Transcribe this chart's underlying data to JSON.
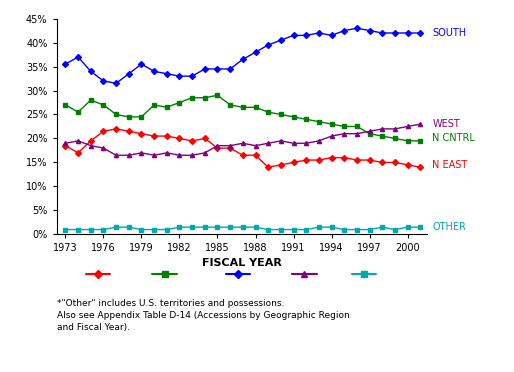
{
  "years": [
    1973,
    1974,
    1975,
    1976,
    1977,
    1978,
    1979,
    1980,
    1981,
    1982,
    1983,
    1984,
    1985,
    1986,
    1987,
    1988,
    1989,
    1990,
    1991,
    1992,
    1993,
    1994,
    1995,
    1996,
    1997,
    1998,
    1999,
    2000,
    2001
  ],
  "n_east": [
    18.5,
    17.0,
    19.5,
    21.5,
    22.0,
    21.5,
    21.0,
    20.5,
    20.5,
    20.0,
    19.5,
    20.0,
    18.0,
    18.0,
    16.5,
    16.5,
    14.0,
    14.5,
    15.0,
    15.5,
    15.5,
    16.0,
    16.0,
    15.5,
    15.5,
    15.0,
    15.0,
    14.5,
    14.0
  ],
  "n_cntrl": [
    27.0,
    25.5,
    28.0,
    27.0,
    25.0,
    24.5,
    24.5,
    27.0,
    26.5,
    27.5,
    28.5,
    28.5,
    29.0,
    27.0,
    26.5,
    26.5,
    25.5,
    25.0,
    24.5,
    24.0,
    23.5,
    23.0,
    22.5,
    22.5,
    21.0,
    20.5,
    20.0,
    19.5,
    19.5
  ],
  "south": [
    35.5,
    37.0,
    34.0,
    32.0,
    31.5,
    33.5,
    35.5,
    34.0,
    33.5,
    33.0,
    33.0,
    34.5,
    34.5,
    34.5,
    36.5,
    38.0,
    39.5,
    40.5,
    41.5,
    41.5,
    42.0,
    41.5,
    42.5,
    43.0,
    42.5,
    42.0,
    42.0,
    42.0,
    42.0
  ],
  "west": [
    19.0,
    19.5,
    18.5,
    18.0,
    16.5,
    16.5,
    17.0,
    16.5,
    17.0,
    16.5,
    16.5,
    17.0,
    18.5,
    18.5,
    19.0,
    18.5,
    19.0,
    19.5,
    19.0,
    19.0,
    19.5,
    20.5,
    21.0,
    21.0,
    21.5,
    22.0,
    22.0,
    22.5,
    23.0
  ],
  "other": [
    1.0,
    1.0,
    1.0,
    1.0,
    1.5,
    1.5,
    1.0,
    1.0,
    1.0,
    1.5,
    1.5,
    1.5,
    1.5,
    1.5,
    1.5,
    1.5,
    1.0,
    1.0,
    1.0,
    1.0,
    1.5,
    1.5,
    1.0,
    1.0,
    1.0,
    1.5,
    1.0,
    1.5,
    1.5
  ],
  "colors": {
    "n_east": "#FF0000",
    "n_cntrl": "#008000",
    "south": "#0000FF",
    "west": "#800080",
    "other": "#00AAAA"
  },
  "xlabel": "FISCAL YEAR",
  "ylim": [
    0,
    45
  ],
  "yticks": [
    0,
    5,
    10,
    15,
    20,
    25,
    30,
    35,
    40,
    45
  ],
  "xticks": [
    1973,
    1976,
    1979,
    1982,
    1985,
    1988,
    1991,
    1994,
    1997,
    2000
  ],
  "right_labels": [
    [
      "south",
      42.0,
      "#0000FF",
      "SOUTH"
    ],
    [
      "west",
      23.0,
      "#800080",
      "WEST"
    ],
    [
      "n_cntrl",
      20.0,
      "#008000",
      "N CNTRL"
    ],
    [
      "n_east",
      14.5,
      "#FF0000",
      "N EAST"
    ],
    [
      "other",
      1.5,
      "#00AAAA",
      "OTHER"
    ]
  ],
  "legend_items": [
    [
      "N East",
      "#FF0000",
      "D"
    ],
    [
      "N Cntrl",
      "#008000",
      "s"
    ],
    [
      "South",
      "#0000FF",
      "D"
    ],
    [
      "West",
      "#800080",
      "^"
    ],
    [
      "Other*",
      "#00AAAA",
      "s"
    ]
  ],
  "footnote_line1": "*\"Other\" includes U.S. territories and possessions.",
  "footnote_line2": "Also see Appendix Table D-14 (Accessions by Geographic Region",
  "footnote_line3": "and Fiscal Year).",
  "bg_color": "#FFFFFF"
}
